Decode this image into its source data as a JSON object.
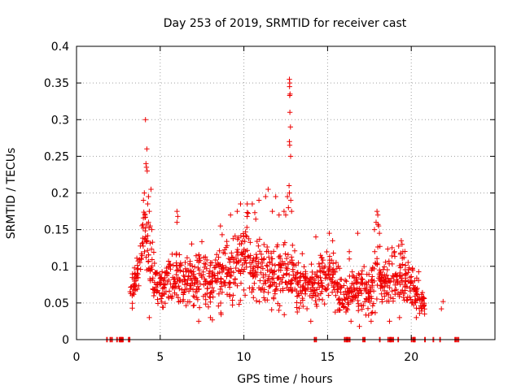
{
  "chart_data": {
    "type": "scatter",
    "title": "Day 253 of 2019, SRMTID for receiver cast",
    "xlabel": "GPS time / hours",
    "ylabel": "SRMTID / TECUs",
    "xlim": [
      0,
      25
    ],
    "ylim": [
      0,
      0.4
    ],
    "x_ticks": [
      "0",
      "5",
      "10",
      "15",
      "20"
    ],
    "x_tick_values": [
      0,
      5,
      10,
      15,
      20
    ],
    "y_ticks": [
      "0",
      "0.05",
      "0.1",
      "0.15",
      "0.2",
      "0.25",
      "0.3",
      "0.35",
      "0.4"
    ],
    "y_tick_values": [
      0,
      0.05,
      0.1,
      0.15,
      0.2,
      0.25,
      0.3,
      0.35,
      0.4
    ],
    "grid": true,
    "marker": "plus",
    "color": "#ee0000",
    "series": [
      {
        "name": "SRMTID",
        "envelope": [
          [
            3.2,
            0.063,
            0.022
          ],
          [
            3.6,
            0.085,
            0.03
          ],
          [
            3.8,
            0.11,
            0.035
          ],
          [
            4.0,
            0.15,
            0.03
          ],
          [
            4.2,
            0.13,
            0.04
          ],
          [
            4.4,
            0.1,
            0.05
          ],
          [
            4.8,
            0.075,
            0.03
          ],
          [
            5.2,
            0.07,
            0.03
          ],
          [
            5.6,
            0.085,
            0.035
          ],
          [
            6.0,
            0.085,
            0.04
          ],
          [
            6.5,
            0.075,
            0.035
          ],
          [
            7.0,
            0.085,
            0.04
          ],
          [
            7.5,
            0.085,
            0.045
          ],
          [
            8.0,
            0.075,
            0.04
          ],
          [
            8.5,
            0.09,
            0.045
          ],
          [
            9.0,
            0.095,
            0.05
          ],
          [
            9.5,
            0.1,
            0.05
          ],
          [
            10.0,
            0.12,
            0.055
          ],
          [
            10.5,
            0.11,
            0.055
          ],
          [
            11.0,
            0.1,
            0.045
          ],
          [
            11.5,
            0.095,
            0.045
          ],
          [
            12.0,
            0.09,
            0.045
          ],
          [
            12.5,
            0.1,
            0.05
          ],
          [
            13.0,
            0.08,
            0.04
          ],
          [
            13.5,
            0.075,
            0.035
          ],
          [
            14.0,
            0.07,
            0.03
          ],
          [
            14.5,
            0.075,
            0.035
          ],
          [
            15.0,
            0.085,
            0.04
          ],
          [
            15.5,
            0.075,
            0.035
          ],
          [
            16.0,
            0.06,
            0.025
          ],
          [
            16.5,
            0.065,
            0.03
          ],
          [
            17.0,
            0.07,
            0.03
          ],
          [
            17.5,
            0.06,
            0.03
          ],
          [
            18.0,
            0.1,
            0.05
          ],
          [
            18.2,
            0.08,
            0.03
          ],
          [
            19.0,
            0.085,
            0.04
          ],
          [
            19.5,
            0.085,
            0.045
          ],
          [
            20.0,
            0.07,
            0.03
          ],
          [
            20.5,
            0.06,
            0.025
          ],
          [
            20.8,
            0.05,
            0.015
          ]
        ],
        "points": [
          [
            4.12,
            0.3
          ],
          [
            4.2,
            0.26
          ],
          [
            4.15,
            0.24
          ],
          [
            4.18,
            0.235
          ],
          [
            4.22,
            0.23
          ],
          [
            4.45,
            0.205
          ],
          [
            4.3,
            0.195
          ],
          [
            4.05,
            0.2
          ],
          [
            4.25,
            0.185
          ],
          [
            4.35,
            0.175
          ],
          [
            4.0,
            0.19
          ],
          [
            4.1,
            0.17
          ],
          [
            4.3,
            0.16
          ],
          [
            4.4,
            0.155
          ],
          [
            4.5,
            0.15
          ],
          [
            12.72,
            0.355
          ],
          [
            12.74,
            0.35
          ],
          [
            12.73,
            0.345
          ],
          [
            12.76,
            0.335
          ],
          [
            12.74,
            0.333
          ],
          [
            12.75,
            0.31
          ],
          [
            12.78,
            0.29
          ],
          [
            12.72,
            0.27
          ],
          [
            12.74,
            0.265
          ],
          [
            12.79,
            0.25
          ],
          [
            12.7,
            0.21
          ],
          [
            12.72,
            0.2
          ],
          [
            12.6,
            0.195
          ],
          [
            12.8,
            0.19
          ],
          [
            12.66,
            0.18
          ],
          [
            12.85,
            0.175
          ],
          [
            12.5,
            0.17
          ],
          [
            12.4,
            0.175
          ],
          [
            11.45,
            0.205
          ],
          [
            11.3,
            0.195
          ],
          [
            10.9,
            0.19
          ],
          [
            11.9,
            0.195
          ],
          [
            10.5,
            0.185
          ],
          [
            10.2,
            0.185
          ],
          [
            9.8,
            0.185
          ],
          [
            9.6,
            0.175
          ],
          [
            11.7,
            0.175
          ],
          [
            12.1,
            0.17
          ],
          [
            9.2,
            0.17
          ],
          [
            8.6,
            0.155
          ],
          [
            6.0,
            0.175
          ],
          [
            6.05,
            0.168
          ],
          [
            6.0,
            0.16
          ],
          [
            17.95,
            0.175
          ],
          [
            18.0,
            0.17
          ],
          [
            17.9,
            0.16
          ],
          [
            18.05,
            0.155
          ],
          [
            17.8,
            0.15
          ],
          [
            18.1,
            0.145
          ],
          [
            16.8,
            0.145
          ],
          [
            15.1,
            0.145
          ],
          [
            15.3,
            0.135
          ],
          [
            14.3,
            0.14
          ],
          [
            19.4,
            0.135
          ],
          [
            19.45,
            0.13
          ],
          [
            19.5,
            0.12
          ],
          [
            19.0,
            0.12
          ],
          [
            16.3,
            0.12
          ],
          [
            16.3,
            0.11
          ],
          [
            4.35,
            0.03
          ],
          [
            7.3,
            0.025
          ],
          [
            8.0,
            0.03
          ],
          [
            14.0,
            0.025
          ],
          [
            16.4,
            0.025
          ],
          [
            16.9,
            0.018
          ],
          [
            17.6,
            0.025
          ],
          [
            18.7,
            0.025
          ],
          [
            19.3,
            0.03
          ],
          [
            20.3,
            0.03
          ],
          [
            20.8,
            0.035
          ],
          [
            21.8,
            0.042
          ],
          [
            21.9,
            0.052
          ]
        ],
        "zero_points": [
          1.8,
          2.0,
          2.1,
          2.4,
          2.55,
          2.6,
          2.65,
          2.7,
          2.75,
          3.1,
          3.15,
          14.2,
          14.3,
          16.0,
          16.1,
          16.15,
          16.2,
          16.3,
          17.1,
          17.2,
          18.1,
          18.6,
          18.7,
          18.75,
          18.8,
          18.9,
          19.2,
          20.0,
          20.1,
          20.15,
          20.2,
          20.8,
          21.3,
          21.7,
          22.6,
          22.7,
          22.8
        ]
      }
    ]
  }
}
